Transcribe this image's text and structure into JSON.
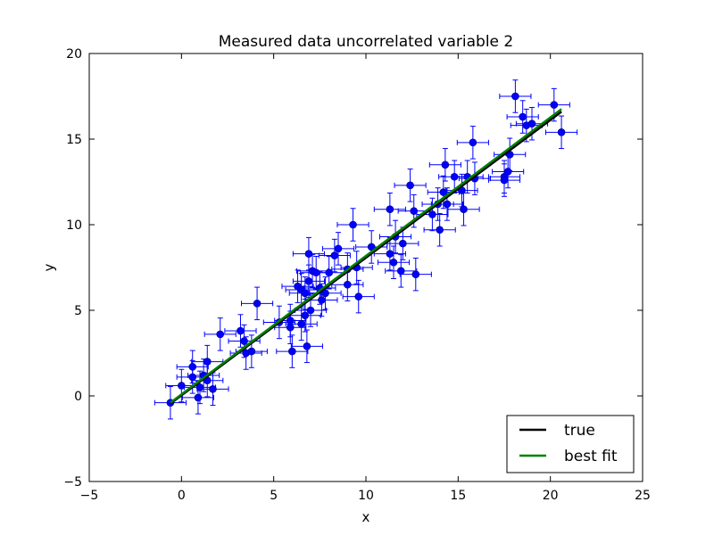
{
  "chart_data": {
    "type": "scatter",
    "title": "Measured data uncorrelated variable 2",
    "xlabel": "x",
    "ylabel": "y",
    "xlim": [
      -5,
      25
    ],
    "ylim": [
      -5,
      20
    ],
    "xticks": [
      -5,
      0,
      5,
      10,
      15,
      20,
      25
    ],
    "yticks": [
      -5,
      0,
      5,
      10,
      15,
      20
    ],
    "xtick_labels": [
      "−5",
      "0",
      "5",
      "10",
      "15",
      "20",
      "25"
    ],
    "ytick_labels": [
      "−5",
      "0",
      "5",
      "10",
      "15",
      "20"
    ],
    "grid": false,
    "legend_position": "lower-right",
    "error_bars": {
      "xerr": 0.85,
      "yerr": 0.95
    },
    "series": [
      {
        "kind": "points",
        "color": "#0000ff",
        "points": [
          [
            -0.6,
            -0.4
          ],
          [
            0.0,
            0.6
          ],
          [
            0.6,
            1.7
          ],
          [
            0.6,
            1.1
          ],
          [
            0.9,
            -0.1
          ],
          [
            1.0,
            0.5
          ],
          [
            1.2,
            1.2
          ],
          [
            1.4,
            2.0
          ],
          [
            1.4,
            0.9
          ],
          [
            1.7,
            0.4
          ],
          [
            2.1,
            3.6
          ],
          [
            3.2,
            3.8
          ],
          [
            3.4,
            3.2
          ],
          [
            3.5,
            2.5
          ],
          [
            3.8,
            2.6
          ],
          [
            4.1,
            5.4
          ],
          [
            5.3,
            4.3
          ],
          [
            5.9,
            4.4
          ],
          [
            5.9,
            4.0
          ],
          [
            6.0,
            2.6
          ],
          [
            6.3,
            6.4
          ],
          [
            6.5,
            6.2
          ],
          [
            6.5,
            4.2
          ],
          [
            6.7,
            6.0
          ],
          [
            6.7,
            4.7
          ],
          [
            6.8,
            2.9
          ],
          [
            6.9,
            8.3
          ],
          [
            6.9,
            6.7
          ],
          [
            7.0,
            5.0
          ],
          [
            7.1,
            7.3
          ],
          [
            7.3,
            7.2
          ],
          [
            7.5,
            6.3
          ],
          [
            7.6,
            5.6
          ],
          [
            7.8,
            6.0
          ],
          [
            8.0,
            7.2
          ],
          [
            8.3,
            8.2
          ],
          [
            8.5,
            8.6
          ],
          [
            9.0,
            7.4
          ],
          [
            9.0,
            6.5
          ],
          [
            9.3,
            10.0
          ],
          [
            9.5,
            7.5
          ],
          [
            9.6,
            5.8
          ],
          [
            10.3,
            8.7
          ],
          [
            11.3,
            10.9
          ],
          [
            11.3,
            8.3
          ],
          [
            11.5,
            7.8
          ],
          [
            11.6,
            9.3
          ],
          [
            11.9,
            7.3
          ],
          [
            12.0,
            8.9
          ],
          [
            12.4,
            12.3
          ],
          [
            12.6,
            10.8
          ],
          [
            12.7,
            7.1
          ],
          [
            13.6,
            10.6
          ],
          [
            13.9,
            11.2
          ],
          [
            14.0,
            9.7
          ],
          [
            14.2,
            11.9
          ],
          [
            14.3,
            13.5
          ],
          [
            14.4,
            11.2
          ],
          [
            14.8,
            12.8
          ],
          [
            15.2,
            12.0
          ],
          [
            15.3,
            10.9
          ],
          [
            15.5,
            12.8
          ],
          [
            15.8,
            14.8
          ],
          [
            15.9,
            12.7
          ],
          [
            17.5,
            12.8
          ],
          [
            17.5,
            12.6
          ],
          [
            17.7,
            13.1
          ],
          [
            17.8,
            14.1
          ],
          [
            18.1,
            17.5
          ],
          [
            18.5,
            16.3
          ],
          [
            18.7,
            15.8
          ],
          [
            19.0,
            15.9
          ],
          [
            20.2,
            17.0
          ],
          [
            20.6,
            15.4
          ]
        ]
      },
      {
        "kind": "line",
        "name": "true",
        "color": "#000000",
        "x": [
          -0.6,
          20.6
        ],
        "y": [
          -0.45,
          16.6
        ]
      },
      {
        "kind": "line",
        "name": "best fit",
        "color": "#008000",
        "x": [
          -0.6,
          20.6
        ],
        "y": [
          -0.4,
          16.75
        ]
      }
    ],
    "legend": [
      {
        "label": "true",
        "color": "#000000"
      },
      {
        "label": "best fit",
        "color": "#008000"
      }
    ]
  }
}
